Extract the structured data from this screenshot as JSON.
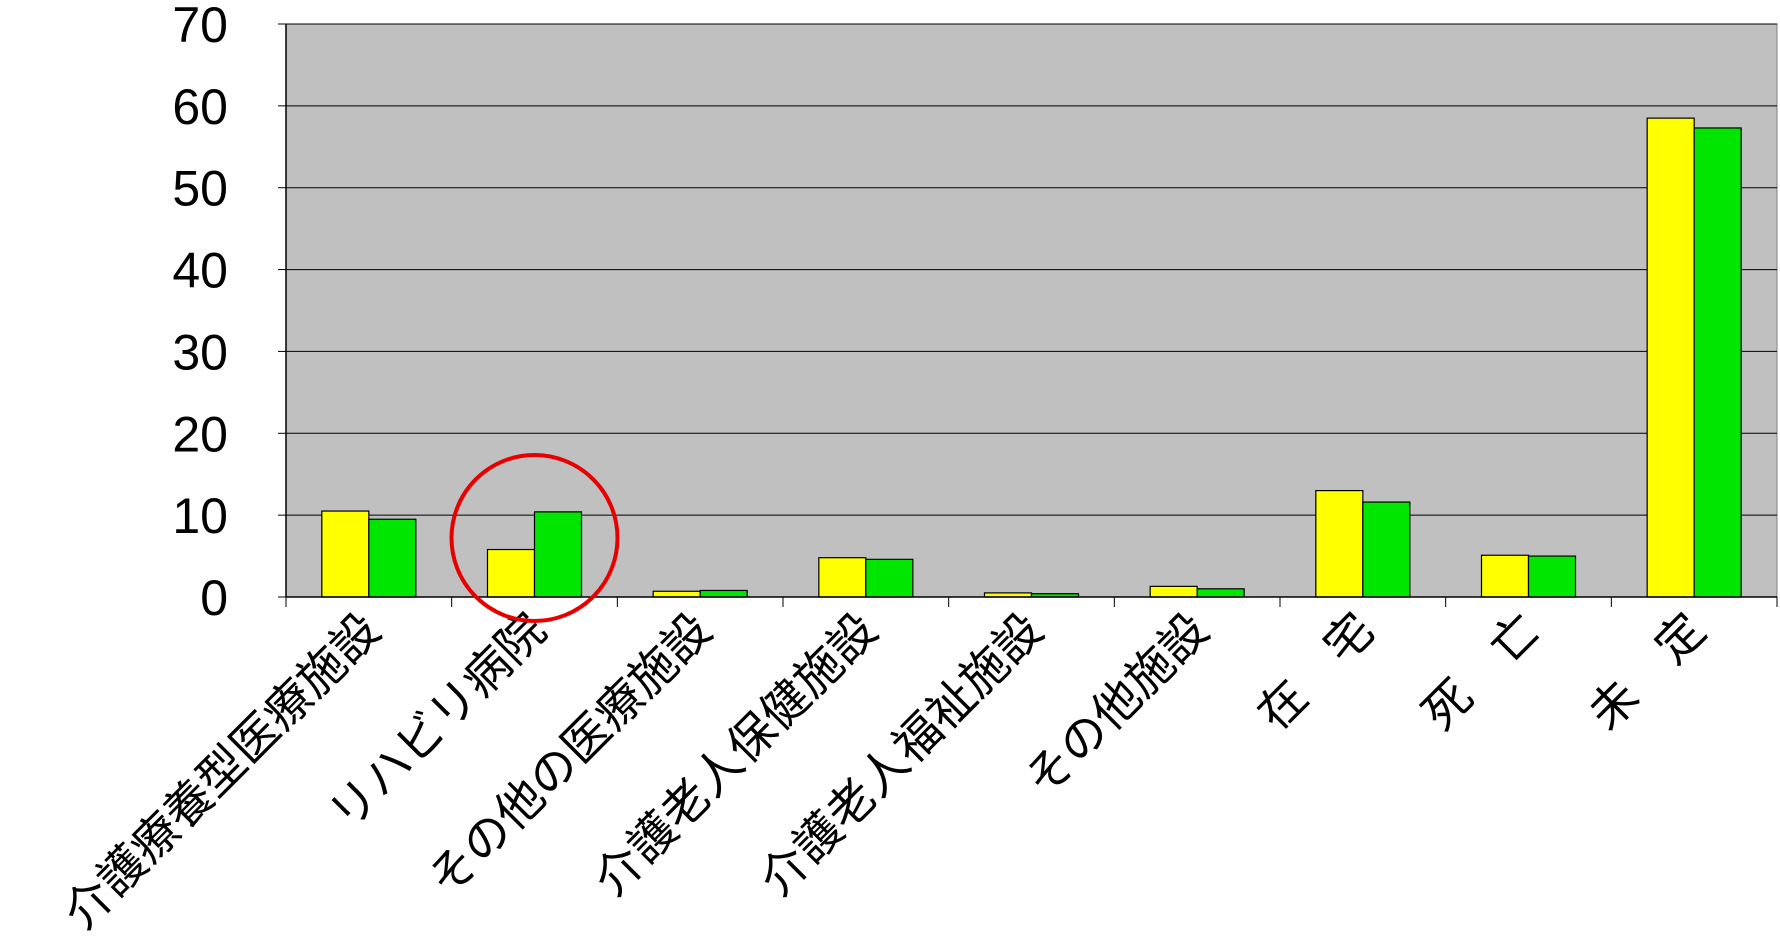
{
  "chart_data": {
    "type": "bar",
    "title": "",
    "xlabel": "",
    "ylabel": "",
    "ylim": [
      0,
      70
    ],
    "yticks": [
      0,
      10,
      20,
      30,
      40,
      50,
      60,
      70
    ],
    "grid": true,
    "legend": "none",
    "categories": [
      "介護療養型医療施設",
      "リハビリ病院",
      "その他の医療施設",
      "介護老人保健施設",
      "介護老人福祉施設",
      "その他施設",
      "在　宅",
      "死　亡",
      "未　定"
    ],
    "series": [
      {
        "values": [
          10.5,
          5.8,
          0.7,
          4.8,
          0.5,
          1.3,
          13.0,
          5.1,
          58.5
        ]
      },
      {
        "values": [
          9.5,
          10.4,
          0.8,
          4.6,
          0.4,
          1.0,
          11.6,
          5.0,
          57.3
        ]
      }
    ],
    "annotation": {
      "type": "circle",
      "category": "リハビリ病院"
    }
  },
  "colors": {
    "plot_background": "#c0c0c0",
    "series": [
      "#ffff00",
      "#00e600"
    ],
    "annotation": "#e60000",
    "gridline": "#000000"
  }
}
